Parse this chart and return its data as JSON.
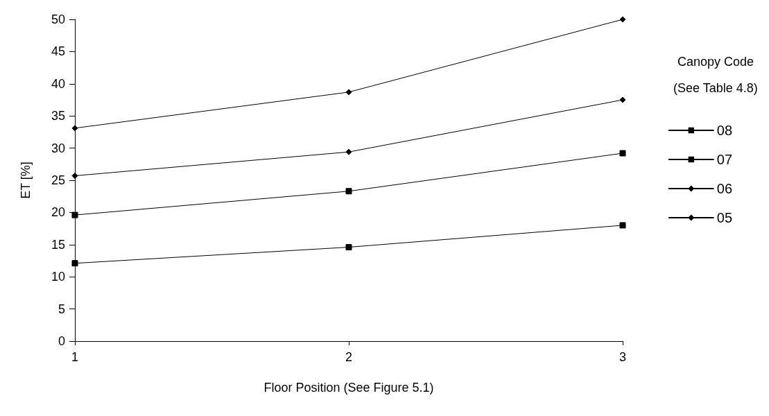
{
  "chart_data": {
    "type": "line",
    "xlabel": "Floor Position (See Figure 5.1)",
    "ylabel": "ET [%]",
    "legend_title": "Canopy Code\n(See Table 4.8)",
    "x": [
      1,
      2,
      3
    ],
    "xlim": [
      1,
      3
    ],
    "xticks": [
      1,
      2,
      3
    ],
    "ylim": [
      0,
      50
    ],
    "yticks": [
      0,
      5,
      10,
      15,
      20,
      25,
      30,
      35,
      40,
      45,
      50
    ],
    "grid": false,
    "legend": "right",
    "line_style": "solid",
    "series": [
      {
        "name": "08",
        "color": "#000000",
        "marker": "square",
        "values": [
          12.1,
          14.6,
          18.0
        ]
      },
      {
        "name": "07",
        "color": "#000000",
        "marker": "square",
        "values": [
          19.6,
          23.3,
          29.2
        ]
      },
      {
        "name": "06",
        "color": "#000000",
        "marker": "diamond",
        "values": [
          25.7,
          29.4,
          37.5
        ]
      },
      {
        "name": "05",
        "color": "#000000",
        "marker": "diamond",
        "values": [
          33.1,
          38.7,
          50.0
        ]
      }
    ]
  }
}
